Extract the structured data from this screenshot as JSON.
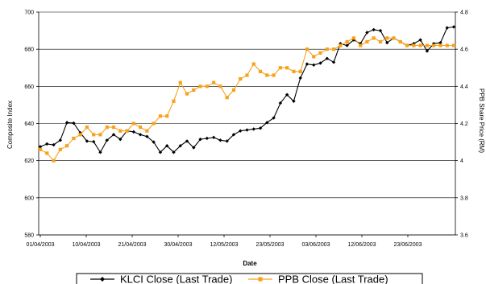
{
  "chart_data": {
    "type": "line",
    "title": "",
    "xlabel": "Date",
    "ylabel": "Composite Index",
    "y2label": "PPB Share Price (RM)",
    "ylim": [
      580,
      700
    ],
    "y2lim": [
      3.6,
      4.8
    ],
    "yticks": [
      580,
      600,
      620,
      640,
      660,
      680,
      700
    ],
    "y2ticks": [
      "3.6",
      "3.8",
      "4",
      "4.2",
      "4.4",
      "4.6",
      "4.8"
    ],
    "xticks": [
      "01/04/2003",
      "10/04/2003",
      "21/04/2003",
      "30/04/2003",
      "12/05/2003",
      "23/05/2003",
      "03/06/2003",
      "12/06/2003",
      "23/06/2003"
    ],
    "grid": "horizontal",
    "legend_position": "bottom",
    "series": [
      {
        "name": "KLCI Close (Last Trade)",
        "axis": "left",
        "color": "#000000",
        "marker": "diamond",
        "values": [
          627.5,
          629,
          628.5,
          631,
          640.5,
          640.2,
          635,
          630.5,
          630.2,
          624.5,
          631,
          634,
          631.5,
          636,
          635.5,
          634,
          633,
          630,
          624.5,
          628,
          624.5,
          628,
          630.5,
          627,
          631.5,
          632,
          632.5,
          631,
          630.5,
          634,
          636,
          636.5,
          637,
          637.5,
          640.5,
          643,
          651,
          655.5,
          652,
          664.5,
          672,
          671.5,
          672.5,
          675,
          673,
          683,
          682,
          685,
          683,
          689,
          690.5,
          690,
          683.5,
          686,
          684,
          682,
          683,
          685,
          679,
          683,
          683.5,
          691.5,
          692
        ]
      },
      {
        "name": "PPB Close (Last Trade)",
        "axis": "right",
        "color": "#F7A21B",
        "marker": "square",
        "values": [
          4.06,
          4.04,
          4.0,
          4.06,
          4.08,
          4.12,
          4.14,
          4.18,
          4.14,
          4.14,
          4.18,
          4.18,
          4.16,
          4.16,
          4.2,
          4.18,
          4.16,
          4.2,
          4.24,
          4.24,
          4.32,
          4.42,
          4.36,
          4.38,
          4.4,
          4.4,
          4.42,
          4.4,
          4.34,
          4.38,
          4.44,
          4.46,
          4.52,
          4.48,
          4.46,
          4.46,
          4.5,
          4.5,
          4.48,
          4.48,
          4.6,
          4.56,
          4.58,
          4.6,
          4.6,
          4.62,
          4.64,
          4.66,
          4.62,
          4.64,
          4.66,
          4.64,
          4.66,
          4.66,
          4.64,
          4.62,
          4.62,
          4.62,
          4.62,
          4.62,
          4.62,
          4.62,
          4.62
        ]
      }
    ]
  }
}
